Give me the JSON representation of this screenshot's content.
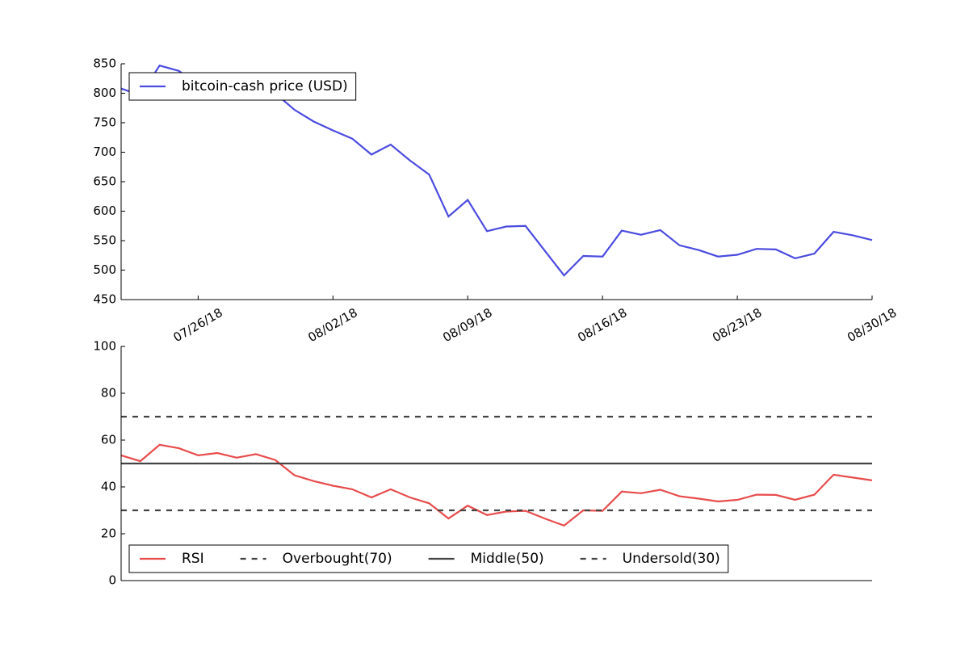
{
  "chart_data": [
    {
      "type": "line",
      "x": [
        "2018-07-22",
        "2018-07-23",
        "2018-07-24",
        "2018-07-25",
        "2018-07-26",
        "2018-07-27",
        "2018-07-28",
        "2018-07-29",
        "2018-07-30",
        "2018-07-31",
        "2018-08-01",
        "2018-08-02",
        "2018-08-03",
        "2018-08-04",
        "2018-08-05",
        "2018-08-06",
        "2018-08-07",
        "2018-08-08",
        "2018-08-09",
        "2018-08-10",
        "2018-08-11",
        "2018-08-12",
        "2018-08-13",
        "2018-08-14",
        "2018-08-15",
        "2018-08-16",
        "2018-08-17",
        "2018-08-18",
        "2018-08-19",
        "2018-08-20",
        "2018-08-21",
        "2018-08-22",
        "2018-08-23",
        "2018-08-24",
        "2018-08-25",
        "2018-08-26",
        "2018-08-27",
        "2018-08-28",
        "2018-08-29",
        "2018-08-30"
      ],
      "series": [
        {
          "name": "bitcoin-cash price (USD)",
          "color": "#4b4be0",
          "values": [
            808,
            797,
            847,
            838,
            815,
            810,
            805,
            800,
            800,
            772,
            752,
            737,
            723,
            696,
            713,
            686,
            662,
            591,
            619,
            566,
            574,
            575,
            533,
            491,
            524,
            523,
            567,
            560,
            568,
            542,
            534,
            523,
            526,
            536,
            535,
            520,
            528,
            565,
            559,
            551
          ]
        }
      ],
      "xlim": [
        "2018-07-22",
        "2018-08-30"
      ],
      "xticks": [
        {
          "value": "2018-07-26",
          "label": "07/26/18"
        },
        {
          "value": "2018-08-02",
          "label": "08/02/18"
        },
        {
          "value": "2018-08-09",
          "label": "08/09/18"
        },
        {
          "value": "2018-08-16",
          "label": "08/16/18"
        },
        {
          "value": "2018-08-23",
          "label": "08/23/18"
        },
        {
          "value": "2018-08-30",
          "label": "08/30/18"
        }
      ],
      "ylim": [
        450,
        850
      ],
      "yticks": [
        450,
        500,
        550,
        600,
        650,
        700,
        750,
        800,
        850
      ],
      "legend": "upper left"
    },
    {
      "type": "line",
      "x": [
        "2018-07-22",
        "2018-07-23",
        "2018-07-24",
        "2018-07-25",
        "2018-07-26",
        "2018-07-27",
        "2018-07-28",
        "2018-07-29",
        "2018-07-30",
        "2018-07-31",
        "2018-08-01",
        "2018-08-02",
        "2018-08-03",
        "2018-08-04",
        "2018-08-05",
        "2018-08-06",
        "2018-08-07",
        "2018-08-08",
        "2018-08-09",
        "2018-08-10",
        "2018-08-11",
        "2018-08-12",
        "2018-08-13",
        "2018-08-14",
        "2018-08-15",
        "2018-08-16",
        "2018-08-17",
        "2018-08-18",
        "2018-08-19",
        "2018-08-20",
        "2018-08-21",
        "2018-08-22",
        "2018-08-23",
        "2018-08-24",
        "2018-08-25",
        "2018-08-26",
        "2018-08-27",
        "2018-08-28",
        "2018-08-29",
        "2018-08-30"
      ],
      "series": [
        {
          "name": "RSI",
          "color": "#e84c4c",
          "values": [
            53.5,
            51,
            58,
            56.5,
            53.5,
            54.5,
            52.5,
            54,
            51.5,
            45,
            42.5,
            40.5,
            39,
            35.5,
            39,
            35.5,
            33,
            26.5,
            32,
            28,
            29.5,
            29.8,
            26.5,
            23.5,
            30,
            29.8,
            38,
            37.3,
            38.8,
            36,
            35,
            33.8,
            34.5,
            36.7,
            36.6,
            34.5,
            36.7,
            45.2,
            44,
            42.8
          ]
        }
      ],
      "hlines": [
        {
          "name": "Overbought(70)",
          "color": "#444444",
          "style": "dashed",
          "value": 70
        },
        {
          "name": "Middle(50)",
          "color": "#444444",
          "style": "solid",
          "value": 50
        },
        {
          "name": "Undersold(30)",
          "color": "#444444",
          "style": "dashed",
          "value": 30
        }
      ],
      "xlim": [
        "2018-07-22",
        "2018-08-30"
      ],
      "ylim": [
        0,
        100
      ],
      "yticks": [
        0,
        20,
        40,
        60,
        80,
        100
      ],
      "legend": "lower left"
    }
  ]
}
